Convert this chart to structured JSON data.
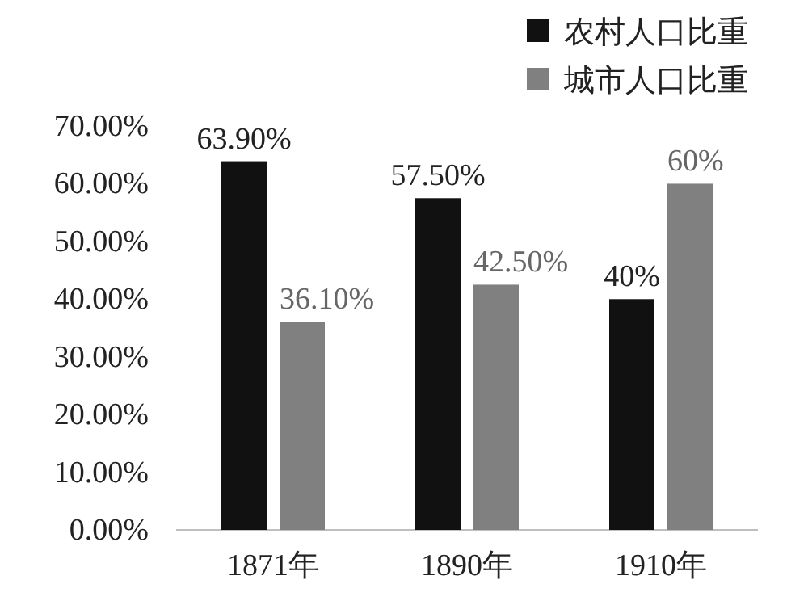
{
  "chart_data": {
    "type": "bar",
    "categories": [
      "1871年",
      "1890年",
      "1910年"
    ],
    "series": [
      {
        "name": "农村人口比重",
        "color": "#111111",
        "values": [
          63.9,
          57.5,
          40
        ],
        "value_labels": [
          "63.90%",
          "57.50%",
          "40%"
        ]
      },
      {
        "name": "城市人口比重",
        "color": "#808080",
        "values": [
          36.1,
          42.5,
          60
        ],
        "value_labels": [
          "36.10%",
          "42.50%",
          "60%"
        ]
      }
    ],
    "ylim": [
      0,
      70
    ],
    "yticks": [
      {
        "value": 0,
        "label": "0.00%"
      },
      {
        "value": 10,
        "label": "10.00%"
      },
      {
        "value": 20,
        "label": "20.00%"
      },
      {
        "value": 30,
        "label": "30.00%"
      },
      {
        "value": 40,
        "label": "40.00%"
      },
      {
        "value": 50,
        "label": "50.00%"
      },
      {
        "value": 60,
        "label": "60.00%"
      },
      {
        "value": 70,
        "label": "70.00%"
      }
    ],
    "grid": false,
    "legend": "top right"
  }
}
